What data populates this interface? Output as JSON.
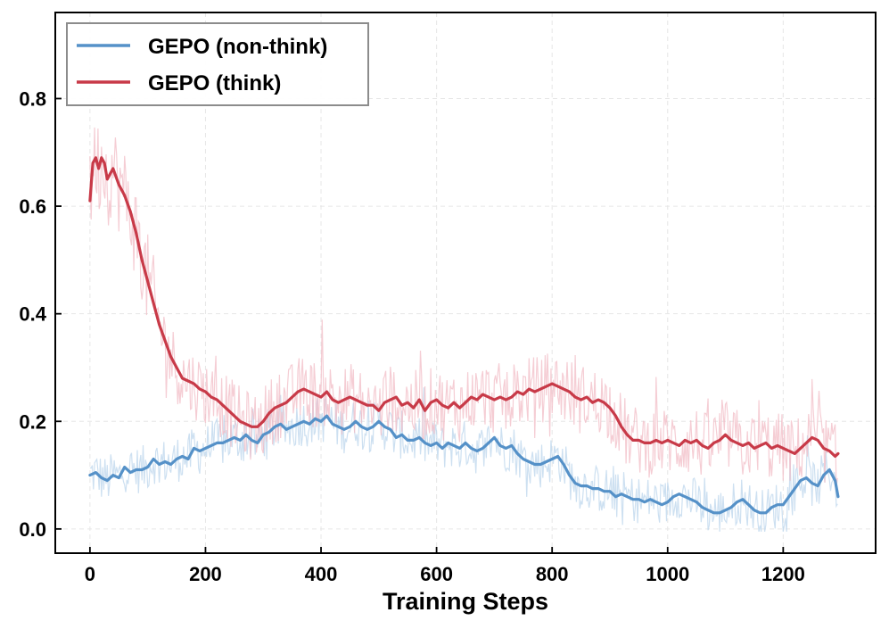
{
  "chart_data": {
    "type": "line",
    "title": "",
    "xlabel": "Training Steps",
    "ylabel": "",
    "xlim": [
      -60,
      1360
    ],
    "ylim": [
      -0.045,
      0.96
    ],
    "xticks": [
      0,
      200,
      400,
      600,
      800,
      1000,
      1200
    ],
    "xtick_labels": [
      "0",
      "200",
      "400",
      "600",
      "800",
      "1000",
      "1200"
    ],
    "yticks": [
      0.0,
      0.2,
      0.4,
      0.6,
      0.8
    ],
    "ytick_labels": [
      "0.0",
      "0.2",
      "0.4",
      "0.6",
      "0.8"
    ],
    "grid": true,
    "legend_position": "top-left",
    "series": [
      {
        "name": "GEPO (non-think)",
        "color": "#5591c8",
        "raw_color": "#bcd6ec",
        "x": [
          0,
          10,
          20,
          30,
          40,
          50,
          60,
          70,
          80,
          90,
          100,
          110,
          120,
          130,
          140,
          150,
          160,
          170,
          180,
          190,
          200,
          210,
          220,
          230,
          240,
          250,
          260,
          270,
          280,
          290,
          300,
          310,
          320,
          330,
          340,
          350,
          360,
          370,
          380,
          390,
          400,
          410,
          420,
          430,
          440,
          450,
          460,
          470,
          480,
          490,
          500,
          510,
          520,
          530,
          540,
          550,
          560,
          570,
          580,
          590,
          600,
          610,
          620,
          630,
          640,
          650,
          660,
          670,
          680,
          690,
          700,
          710,
          720,
          730,
          740,
          750,
          760,
          770,
          780,
          790,
          800,
          810,
          820,
          830,
          840,
          850,
          860,
          870,
          880,
          890,
          900,
          910,
          920,
          930,
          940,
          950,
          960,
          970,
          980,
          990,
          1000,
          1010,
          1020,
          1030,
          1040,
          1050,
          1060,
          1070,
          1080,
          1090,
          1100,
          1110,
          1120,
          1130,
          1140,
          1150,
          1160,
          1170,
          1180,
          1190,
          1200,
          1210,
          1220,
          1230,
          1240,
          1250,
          1260,
          1270,
          1280,
          1290,
          1295
        ],
        "values": [
          0.1,
          0.105,
          0.095,
          0.09,
          0.1,
          0.095,
          0.115,
          0.105,
          0.11,
          0.11,
          0.115,
          0.13,
          0.12,
          0.125,
          0.12,
          0.13,
          0.135,
          0.13,
          0.15,
          0.145,
          0.15,
          0.155,
          0.16,
          0.16,
          0.165,
          0.17,
          0.165,
          0.175,
          0.165,
          0.16,
          0.175,
          0.18,
          0.19,
          0.195,
          0.185,
          0.19,
          0.195,
          0.2,
          0.195,
          0.205,
          0.2,
          0.21,
          0.195,
          0.19,
          0.185,
          0.19,
          0.2,
          0.19,
          0.185,
          0.19,
          0.2,
          0.19,
          0.185,
          0.17,
          0.175,
          0.165,
          0.165,
          0.17,
          0.16,
          0.155,
          0.16,
          0.15,
          0.16,
          0.155,
          0.15,
          0.16,
          0.15,
          0.145,
          0.15,
          0.16,
          0.17,
          0.155,
          0.15,
          0.155,
          0.14,
          0.13,
          0.125,
          0.12,
          0.12,
          0.125,
          0.13,
          0.135,
          0.12,
          0.1,
          0.085,
          0.08,
          0.08,
          0.075,
          0.075,
          0.07,
          0.07,
          0.06,
          0.065,
          0.06,
          0.055,
          0.055,
          0.05,
          0.055,
          0.05,
          0.045,
          0.05,
          0.06,
          0.065,
          0.06,
          0.055,
          0.05,
          0.04,
          0.035,
          0.03,
          0.03,
          0.035,
          0.04,
          0.05,
          0.055,
          0.045,
          0.035,
          0.03,
          0.03,
          0.04,
          0.045,
          0.045,
          0.06,
          0.075,
          0.09,
          0.095,
          0.085,
          0.08,
          0.1,
          0.11,
          0.09,
          0.06
        ]
      },
      {
        "name": "GEPO (think)",
        "color": "#c83a48",
        "raw_color": "#f1bcc5",
        "x": [
          0,
          5,
          10,
          15,
          20,
          25,
          30,
          35,
          40,
          50,
          60,
          70,
          80,
          90,
          100,
          110,
          120,
          130,
          140,
          150,
          160,
          170,
          180,
          190,
          200,
          210,
          220,
          230,
          240,
          250,
          260,
          270,
          280,
          290,
          300,
          310,
          320,
          330,
          340,
          350,
          360,
          370,
          380,
          390,
          400,
          410,
          420,
          430,
          440,
          450,
          460,
          470,
          480,
          490,
          500,
          510,
          520,
          530,
          540,
          550,
          560,
          570,
          580,
          590,
          600,
          610,
          620,
          630,
          640,
          650,
          660,
          670,
          680,
          690,
          700,
          710,
          720,
          730,
          740,
          750,
          760,
          770,
          780,
          790,
          800,
          810,
          820,
          830,
          840,
          850,
          860,
          870,
          880,
          890,
          900,
          910,
          920,
          930,
          940,
          950,
          960,
          970,
          980,
          990,
          1000,
          1010,
          1020,
          1030,
          1040,
          1050,
          1060,
          1070,
          1080,
          1090,
          1100,
          1110,
          1120,
          1130,
          1140,
          1150,
          1160,
          1170,
          1180,
          1190,
          1200,
          1210,
          1220,
          1230,
          1240,
          1250,
          1260,
          1270,
          1280,
          1290,
          1295
        ],
        "values": [
          0.61,
          0.68,
          0.69,
          0.67,
          0.69,
          0.68,
          0.65,
          0.66,
          0.67,
          0.64,
          0.62,
          0.59,
          0.55,
          0.5,
          0.46,
          0.42,
          0.38,
          0.35,
          0.32,
          0.3,
          0.28,
          0.275,
          0.27,
          0.26,
          0.255,
          0.245,
          0.24,
          0.23,
          0.22,
          0.21,
          0.2,
          0.195,
          0.19,
          0.19,
          0.2,
          0.215,
          0.225,
          0.23,
          0.235,
          0.245,
          0.255,
          0.26,
          0.255,
          0.25,
          0.245,
          0.255,
          0.24,
          0.235,
          0.24,
          0.245,
          0.24,
          0.235,
          0.23,
          0.23,
          0.22,
          0.235,
          0.24,
          0.245,
          0.23,
          0.235,
          0.225,
          0.24,
          0.22,
          0.235,
          0.24,
          0.23,
          0.225,
          0.235,
          0.225,
          0.235,
          0.245,
          0.24,
          0.25,
          0.245,
          0.24,
          0.245,
          0.24,
          0.245,
          0.255,
          0.25,
          0.26,
          0.255,
          0.26,
          0.265,
          0.27,
          0.265,
          0.26,
          0.255,
          0.245,
          0.24,
          0.245,
          0.235,
          0.24,
          0.235,
          0.225,
          0.21,
          0.19,
          0.175,
          0.165,
          0.165,
          0.16,
          0.16,
          0.165,
          0.16,
          0.165,
          0.16,
          0.155,
          0.165,
          0.16,
          0.165,
          0.155,
          0.15,
          0.16,
          0.165,
          0.175,
          0.165,
          0.16,
          0.155,
          0.16,
          0.15,
          0.155,
          0.16,
          0.15,
          0.155,
          0.15,
          0.145,
          0.14,
          0.15,
          0.16,
          0.17,
          0.165,
          0.15,
          0.145,
          0.135,
          0.14
        ]
      }
    ]
  }
}
